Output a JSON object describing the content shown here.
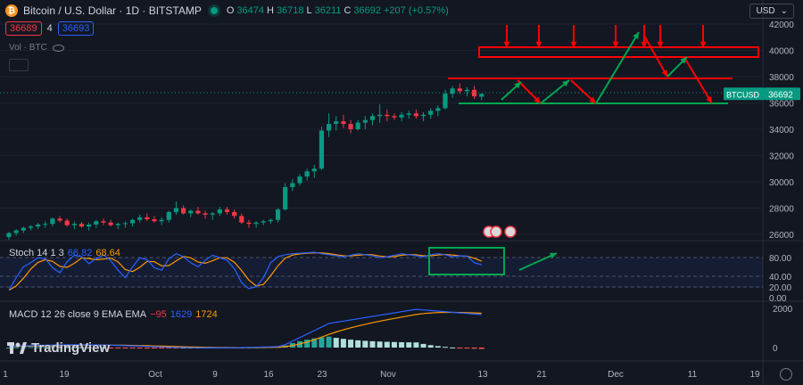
{
  "header": {
    "symbol_title": "Bitcoin / U.S. Dollar · 1D · BITSTAMP",
    "ohlc": [
      {
        "k": "O",
        "v": "36474"
      },
      {
        "k": "H",
        "v": "36718"
      },
      {
        "k": "L",
        "v": "36211"
      },
      {
        "k": "C",
        "v": "36692"
      }
    ],
    "change": "+207 (+0.57%)",
    "sell_price": "36689",
    "spread": "4",
    "buy_price": "36693",
    "volume_label": "Vol · BTC",
    "currency": "USD"
  },
  "indicators": {
    "stoch": {
      "name": "Stoch 14 1 3",
      "k": "66.82",
      "d": "68.64"
    },
    "macd": {
      "name": "MACD 12 26 close 9 EMA EMA",
      "hist": "−95",
      "macd": "1629",
      "signal": "1724"
    }
  },
  "price_axis": {
    "ticks": [
      "42000",
      "40000",
      "38000",
      "36000",
      "34000",
      "32000",
      "30000",
      "28000",
      "26000"
    ],
    "last_label": "BTCUSD",
    "last_value": "36692"
  },
  "stoch_axis": {
    "ticks": [
      "80.00",
      "40.00",
      "20.00",
      "0.00"
    ]
  },
  "macd_axis": {
    "ticks": [
      "2000",
      "0"
    ]
  },
  "time_axis": {
    "ticks": [
      "1",
      "19",
      "Oct",
      "9",
      "16",
      "23",
      "Nov",
      "13",
      "21",
      "Dec",
      "11",
      "19"
    ]
  },
  "branding": "TradingView",
  "colors": {
    "up": "#089981",
    "down": "#f23645",
    "annotation_red": "#ff0000",
    "annotation_green": "#00a651"
  },
  "chart_data": {
    "type": "candlestick",
    "title": "Bitcoin / U.S. Dollar · 1D · BITSTAMP",
    "ylim": [
      25000,
      42500
    ],
    "candles": [
      [
        25800,
        26200,
        25600,
        26100
      ],
      [
        26100,
        26400,
        25900,
        26300
      ],
      [
        26300,
        26600,
        26100,
        26500
      ],
      [
        26500,
        26700,
        26300,
        26600
      ],
      [
        26600,
        26900,
        26400,
        26750
      ],
      [
        26750,
        27000,
        26500,
        26800
      ],
      [
        26800,
        27300,
        26600,
        27200
      ],
      [
        27200,
        27400,
        26900,
        27050
      ],
      [
        27050,
        27200,
        26600,
        26700
      ],
      [
        26700,
        27000,
        26400,
        26800
      ],
      [
        26800,
        26950,
        26500,
        26600
      ],
      [
        26600,
        26900,
        26300,
        26750
      ],
      [
        26750,
        27100,
        26500,
        27000
      ],
      [
        27000,
        27200,
        26700,
        26900
      ],
      [
        26900,
        27100,
        26600,
        26700
      ],
      [
        26700,
        26900,
        26400,
        26800
      ],
      [
        26800,
        27000,
        26500,
        26850
      ],
      [
        26850,
        27200,
        26600,
        27100
      ],
      [
        27100,
        27500,
        26900,
        27300
      ],
      [
        27300,
        27600,
        27000,
        27150
      ],
      [
        27150,
        27400,
        26900,
        27000
      ],
      [
        27000,
        27300,
        26700,
        27100
      ],
      [
        27100,
        27800,
        26900,
        27700
      ],
      [
        27700,
        28500,
        27500,
        28000
      ],
      [
        28000,
        28200,
        27500,
        27600
      ],
      [
        27600,
        27900,
        27300,
        27800
      ],
      [
        27800,
        28100,
        27500,
        27600
      ],
      [
        27600,
        27800,
        27200,
        27500
      ],
      [
        27500,
        27700,
        27100,
        27600
      ],
      [
        27600,
        28100,
        27400,
        27900
      ],
      [
        27900,
        28100,
        27500,
        27700
      ],
      [
        27700,
        27900,
        27200,
        27400
      ],
      [
        27400,
        27600,
        26800,
        26900
      ],
      [
        26900,
        27100,
        26500,
        26800
      ],
      [
        26800,
        27000,
        26500,
        26900
      ],
      [
        26900,
        27100,
        26700,
        27000
      ],
      [
        27000,
        27200,
        26800,
        27100
      ],
      [
        27100,
        28000,
        26900,
        27900
      ],
      [
        27900,
        29900,
        27800,
        29600
      ],
      [
        29600,
        30200,
        29300,
        29900
      ],
      [
        29900,
        30600,
        29700,
        30400
      ],
      [
        30400,
        31000,
        30100,
        30800
      ],
      [
        30800,
        31300,
        30300,
        31000
      ],
      [
        31000,
        34200,
        30900,
        33900
      ],
      [
        33900,
        35200,
        33400,
        34400
      ],
      [
        34400,
        35000,
        33900,
        34600
      ],
      [
        34600,
        35100,
        34100,
        34400
      ],
      [
        34400,
        34700,
        33700,
        34000
      ],
      [
        34000,
        34700,
        33900,
        34500
      ],
      [
        34500,
        35000,
        34000,
        34700
      ],
      [
        34700,
        35200,
        34300,
        35000
      ],
      [
        35000,
        35900,
        34500,
        35100
      ],
      [
        35100,
        35500,
        34600,
        35000
      ],
      [
        35000,
        35200,
        34700,
        34900
      ],
      [
        34900,
        35300,
        34600,
        35100
      ],
      [
        35100,
        35400,
        34800,
        35200
      ],
      [
        35200,
        35500,
        34800,
        35000
      ],
      [
        35000,
        35300,
        34600,
        35100
      ],
      [
        35100,
        35600,
        34800,
        35400
      ],
      [
        35400,
        35800,
        35000,
        35600
      ],
      [
        35600,
        37000,
        35500,
        36700
      ],
      [
        36700,
        37300,
        36400,
        37100
      ],
      [
        37100,
        37500,
        36700,
        36900
      ],
      [
        36900,
        37200,
        36500,
        37000
      ],
      [
        37000,
        37300,
        36300,
        36500
      ],
      [
        36474,
        36718,
        36211,
        36692
      ]
    ]
  }
}
